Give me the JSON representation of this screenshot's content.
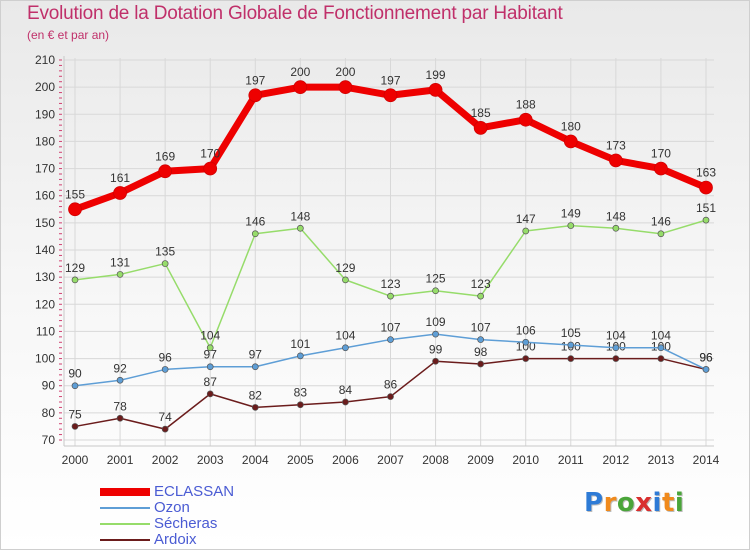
{
  "title": "Evolution de la Dotation Globale de Fonctionnement par Habitant",
  "subtitle": "(en € et par an)",
  "logo": "Proxiti",
  "chart_data": {
    "type": "line",
    "title": "Evolution de la Dotation Globale de Fonctionnement par Habitant",
    "ylabel": "(en € et par an)",
    "xlabel": "",
    "ylim": [
      70,
      210
    ],
    "yticks": [
      70,
      80,
      90,
      100,
      110,
      120,
      130,
      140,
      150,
      160,
      170,
      180,
      190,
      200,
      210
    ],
    "x": [
      "2000",
      "2001",
      "2002",
      "2003",
      "2004",
      "2005",
      "2006",
      "2007",
      "2008",
      "2009",
      "2010",
      "2011",
      "2012",
      "2013",
      "2014"
    ],
    "series": [
      {
        "name": "ECLASSAN",
        "color": "#ee0000",
        "values": [
          155,
          161,
          169,
          170,
          197,
          200,
          200,
          197,
          199,
          185,
          188,
          180,
          173,
          170,
          163
        ]
      },
      {
        "name": "Ozon",
        "color": "#5e9ed6",
        "values": [
          90,
          92,
          96,
          97,
          97,
          101,
          104,
          107,
          109,
          107,
          106,
          105,
          104,
          104,
          96
        ]
      },
      {
        "name": "Sécheras",
        "color": "#96dc6a",
        "values": [
          129,
          131,
          135,
          104,
          146,
          148,
          129,
          123,
          125,
          123,
          147,
          149,
          148,
          146,
          151
        ]
      },
      {
        "name": "Ardoix",
        "color": "#6b1c1c",
        "values": [
          75,
          78,
          74,
          87,
          82,
          83,
          84,
          86,
          99,
          98,
          100,
          100,
          100,
          100,
          96
        ]
      }
    ],
    "legend_position": "bottom-left",
    "grid": true
  }
}
